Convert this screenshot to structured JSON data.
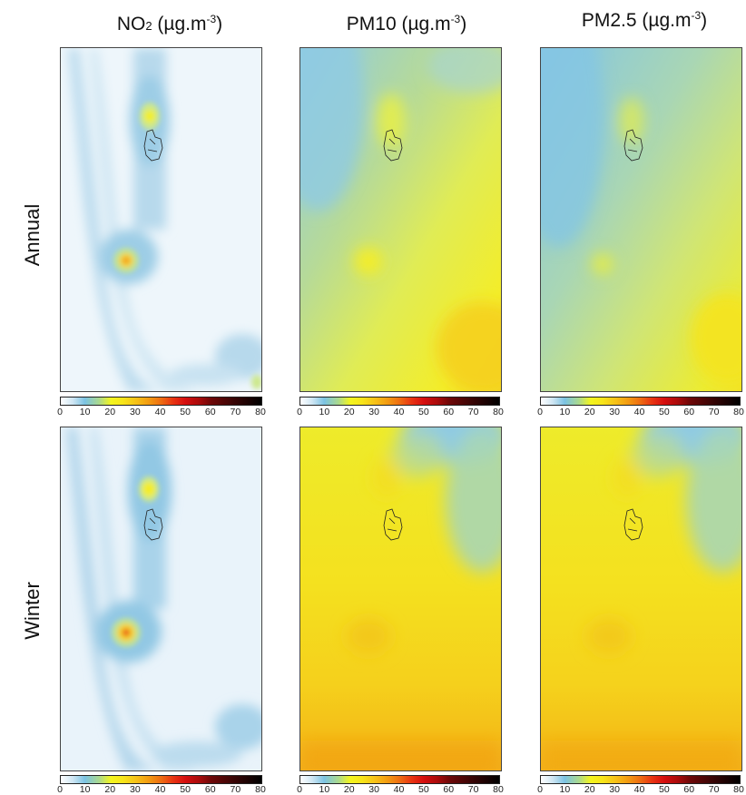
{
  "columns": [
    {
      "main": "NO",
      "sub": "2",
      "unit_open": " (µg.m",
      "exp": "-3",
      "unit_close": ")"
    },
    {
      "main": "PM10",
      "sub": "",
      "unit_open": " (µg.m",
      "exp": "-3",
      "unit_close": ")"
    },
    {
      "main": "PM2.5",
      "sub": "",
      "unit_open": " (µg.m",
      "exp": "-3",
      "unit_close": ")"
    }
  ],
  "rows": [
    "Annual",
    "Winter"
  ],
  "colorbar": {
    "ticks": [
      "0",
      "10",
      "20",
      "30",
      "40",
      "50",
      "60",
      "70",
      "80"
    ],
    "colors": [
      "#ffffff",
      "#7cc3e3",
      "#f3f51f",
      "#f29a12",
      "#e83412",
      "#a90b0b",
      "#000000"
    ]
  }
}
